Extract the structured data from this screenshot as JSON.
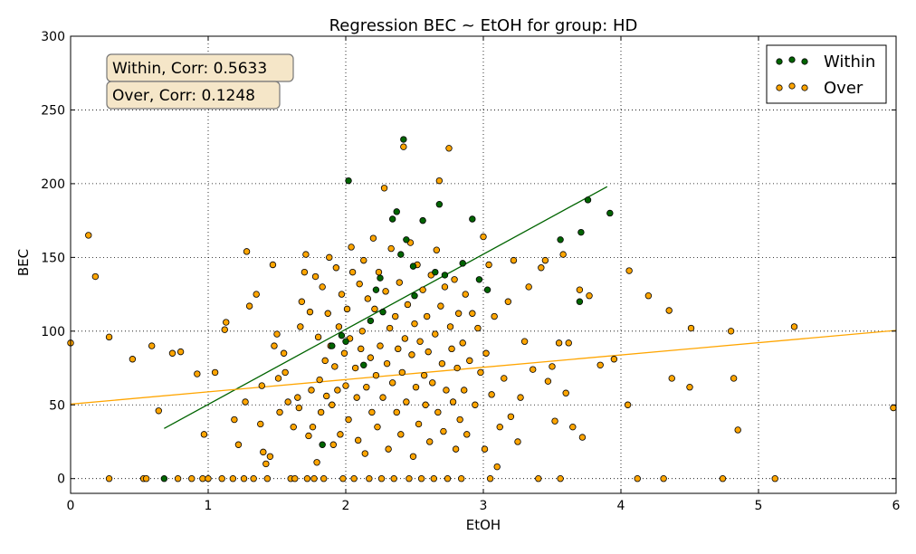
{
  "chart_data": {
    "type": "scatter",
    "title": "Regression BEC ~ EtOH for group: HD",
    "xlabel": "EtOH",
    "ylabel": "BEC",
    "xlim": [
      0,
      6
    ],
    "ylim": [
      -10,
      300
    ],
    "grid": true,
    "legend_position": "top-right",
    "x_ticks": [
      0,
      1,
      2,
      3,
      4,
      5,
      6
    ],
    "y_ticks": [
      0,
      50,
      100,
      150,
      200,
      250,
      300
    ],
    "annotations": [
      "Within, Corr: 0.5633",
      "Over, Corr: 0.1248"
    ],
    "series": [
      {
        "name": "Within",
        "color": "#006400",
        "points": [
          [
            0.68,
            0
          ],
          [
            1.83,
            23
          ],
          [
            1.9,
            90
          ],
          [
            1.97,
            97
          ],
          [
            2.0,
            93
          ],
          [
            2.02,
            202
          ],
          [
            2.13,
            77
          ],
          [
            2.18,
            107
          ],
          [
            2.22,
            128
          ],
          [
            2.25,
            136
          ],
          [
            2.27,
            113
          ],
          [
            2.34,
            176
          ],
          [
            2.37,
            181
          ],
          [
            2.4,
            152
          ],
          [
            2.42,
            230
          ],
          [
            2.44,
            162
          ],
          [
            2.49,
            144
          ],
          [
            2.5,
            124
          ],
          [
            2.56,
            175
          ],
          [
            2.65,
            140
          ],
          [
            2.68,
            186
          ],
          [
            2.72,
            138
          ],
          [
            2.85,
            146
          ],
          [
            2.92,
            176
          ],
          [
            2.97,
            135
          ],
          [
            3.03,
            128
          ],
          [
            3.56,
            162
          ],
          [
            3.7,
            120
          ],
          [
            3.71,
            167
          ],
          [
            3.76,
            189
          ],
          [
            3.92,
            180
          ]
        ],
        "regression": {
          "x": [
            0.68,
            3.9
          ],
          "y": [
            34,
            198
          ]
        }
      },
      {
        "name": "Over",
        "color": "#FFA500",
        "points": [
          [
            0.0,
            92
          ],
          [
            0.13,
            165
          ],
          [
            0.18,
            137
          ],
          [
            0.28,
            96
          ],
          [
            0.28,
            0
          ],
          [
            0.45,
            81
          ],
          [
            0.53,
            0
          ],
          [
            0.55,
            0
          ],
          [
            0.59,
            90
          ],
          [
            0.64,
            46
          ],
          [
            0.74,
            85
          ],
          [
            0.78,
            0
          ],
          [
            0.8,
            86
          ],
          [
            0.88,
            0
          ],
          [
            0.92,
            71
          ],
          [
            0.96,
            0
          ],
          [
            0.97,
            30
          ],
          [
            1.0,
            0
          ],
          [
            1.05,
            72
          ],
          [
            1.1,
            0
          ],
          [
            1.12,
            101
          ],
          [
            1.13,
            106
          ],
          [
            1.18,
            0
          ],
          [
            1.19,
            40
          ],
          [
            1.22,
            23
          ],
          [
            1.26,
            0
          ],
          [
            1.27,
            52
          ],
          [
            1.28,
            154
          ],
          [
            1.3,
            117
          ],
          [
            1.33,
            0
          ],
          [
            1.35,
            125
          ],
          [
            1.38,
            37
          ],
          [
            1.39,
            63
          ],
          [
            1.4,
            18
          ],
          [
            1.42,
            10
          ],
          [
            1.43,
            0
          ],
          [
            1.45,
            15
          ],
          [
            1.47,
            145
          ],
          [
            1.48,
            90
          ],
          [
            1.5,
            98
          ],
          [
            1.51,
            68
          ],
          [
            1.52,
            45
          ],
          [
            1.55,
            85
          ],
          [
            1.56,
            72
          ],
          [
            1.58,
            52
          ],
          [
            1.6,
            0
          ],
          [
            1.62,
            35
          ],
          [
            1.63,
            0
          ],
          [
            1.65,
            55
          ],
          [
            1.66,
            48
          ],
          [
            1.67,
            103
          ],
          [
            1.68,
            120
          ],
          [
            1.7,
            140
          ],
          [
            1.71,
            152
          ],
          [
            1.72,
            0
          ],
          [
            1.73,
            29
          ],
          [
            1.74,
            113
          ],
          [
            1.75,
            60
          ],
          [
            1.76,
            35
          ],
          [
            1.77,
            0
          ],
          [
            1.78,
            137
          ],
          [
            1.79,
            11
          ],
          [
            1.8,
            96
          ],
          [
            1.81,
            67
          ],
          [
            1.82,
            45
          ],
          [
            1.83,
            130
          ],
          [
            1.84,
            0
          ],
          [
            1.85,
            80
          ],
          [
            1.86,
            56
          ],
          [
            1.87,
            112
          ],
          [
            1.88,
            150
          ],
          [
            1.89,
            90
          ],
          [
            1.9,
            50
          ],
          [
            1.91,
            23
          ],
          [
            1.92,
            76
          ],
          [
            1.93,
            143
          ],
          [
            1.94,
            60
          ],
          [
            1.95,
            103
          ],
          [
            1.96,
            30
          ],
          [
            1.97,
            125
          ],
          [
            1.98,
            0
          ],
          [
            1.99,
            85
          ],
          [
            2.0,
            63
          ],
          [
            2.01,
            115
          ],
          [
            2.02,
            40
          ],
          [
            2.03,
            95
          ],
          [
            2.04,
            157
          ],
          [
            2.05,
            140
          ],
          [
            2.06,
            0
          ],
          [
            2.07,
            75
          ],
          [
            2.08,
            55
          ],
          [
            2.09,
            26
          ],
          [
            2.1,
            132
          ],
          [
            2.11,
            88
          ],
          [
            2.12,
            100
          ],
          [
            2.13,
            148
          ],
          [
            2.14,
            17
          ],
          [
            2.15,
            62
          ],
          [
            2.16,
            122
          ],
          [
            2.17,
            0
          ],
          [
            2.18,
            82
          ],
          [
            2.19,
            45
          ],
          [
            2.2,
            163
          ],
          [
            2.21,
            115
          ],
          [
            2.22,
            70
          ],
          [
            2.23,
            35
          ],
          [
            2.24,
            140
          ],
          [
            2.25,
            90
          ],
          [
            2.26,
            0
          ],
          [
            2.27,
            55
          ],
          [
            2.28,
            197
          ],
          [
            2.29,
            127
          ],
          [
            2.3,
            78
          ],
          [
            2.31,
            20
          ],
          [
            2.32,
            102
          ],
          [
            2.33,
            156
          ],
          [
            2.34,
            65
          ],
          [
            2.35,
            0
          ],
          [
            2.36,
            110
          ],
          [
            2.37,
            45
          ],
          [
            2.38,
            88
          ],
          [
            2.39,
            133
          ],
          [
            2.4,
            30
          ],
          [
            2.41,
            72
          ],
          [
            2.42,
            225
          ],
          [
            2.43,
            95
          ],
          [
            2.44,
            52
          ],
          [
            2.45,
            118
          ],
          [
            2.46,
            0
          ],
          [
            2.47,
            160
          ],
          [
            2.48,
            84
          ],
          [
            2.49,
            15
          ],
          [
            2.5,
            105
          ],
          [
            2.51,
            62
          ],
          [
            2.52,
            145
          ],
          [
            2.53,
            37
          ],
          [
            2.54,
            93
          ],
          [
            2.55,
            0
          ],
          [
            2.56,
            128
          ],
          [
            2.57,
            70
          ],
          [
            2.58,
            50
          ],
          [
            2.59,
            110
          ],
          [
            2.6,
            86
          ],
          [
            2.61,
            25
          ],
          [
            2.62,
            138
          ],
          [
            2.63,
            65
          ],
          [
            2.64,
            0
          ],
          [
            2.65,
            98
          ],
          [
            2.66,
            155
          ],
          [
            2.67,
            45
          ],
          [
            2.68,
            202
          ],
          [
            2.69,
            117
          ],
          [
            2.7,
            78
          ],
          [
            2.71,
            32
          ],
          [
            2.72,
            130
          ],
          [
            2.73,
            60
          ],
          [
            2.74,
            0
          ],
          [
            2.75,
            224
          ],
          [
            2.76,
            103
          ],
          [
            2.77,
            88
          ],
          [
            2.78,
            52
          ],
          [
            2.79,
            135
          ],
          [
            2.8,
            20
          ],
          [
            2.81,
            75
          ],
          [
            2.82,
            112
          ],
          [
            2.83,
            40
          ],
          [
            2.84,
            0
          ],
          [
            2.85,
            92
          ],
          [
            2.86,
            60
          ],
          [
            2.87,
            125
          ],
          [
            2.88,
            30
          ],
          [
            2.9,
            80
          ],
          [
            2.92,
            112
          ],
          [
            2.94,
            50
          ],
          [
            2.96,
            102
          ],
          [
            2.98,
            72
          ],
          [
            3.0,
            164
          ],
          [
            3.01,
            20
          ],
          [
            3.02,
            85
          ],
          [
            3.04,
            145
          ],
          [
            3.05,
            0
          ],
          [
            3.06,
            57
          ],
          [
            3.08,
            110
          ],
          [
            3.1,
            8
          ],
          [
            3.12,
            35
          ],
          [
            3.15,
            68
          ],
          [
            3.18,
            120
          ],
          [
            3.2,
            42
          ],
          [
            3.22,
            148
          ],
          [
            3.25,
            25
          ],
          [
            3.27,
            55
          ],
          [
            3.3,
            93
          ],
          [
            3.33,
            130
          ],
          [
            3.36,
            74
          ],
          [
            3.4,
            0
          ],
          [
            3.42,
            143
          ],
          [
            3.45,
            148
          ],
          [
            3.47,
            66
          ],
          [
            3.5,
            76
          ],
          [
            3.52,
            39
          ],
          [
            3.55,
            92
          ],
          [
            3.56,
            0
          ],
          [
            3.58,
            152
          ],
          [
            3.6,
            58
          ],
          [
            3.62,
            92
          ],
          [
            3.65,
            35
          ],
          [
            3.7,
            128
          ],
          [
            3.72,
            28
          ],
          [
            3.77,
            124
          ],
          [
            3.85,
            77
          ],
          [
            3.95,
            81
          ],
          [
            4.05,
            50
          ],
          [
            4.06,
            141
          ],
          [
            4.12,
            0
          ],
          [
            4.2,
            124
          ],
          [
            4.31,
            0
          ],
          [
            4.35,
            114
          ],
          [
            4.37,
            68
          ],
          [
            4.5,
            62
          ],
          [
            4.51,
            102
          ],
          [
            4.74,
            0
          ],
          [
            4.8,
            100
          ],
          [
            4.82,
            68
          ],
          [
            4.85,
            33
          ],
          [
            5.12,
            0
          ],
          [
            5.26,
            103
          ],
          [
            5.98,
            48
          ]
        ],
        "regression": {
          "x": [
            0,
            6
          ],
          "y": [
            50.5,
            100.5
          ]
        }
      }
    ]
  }
}
